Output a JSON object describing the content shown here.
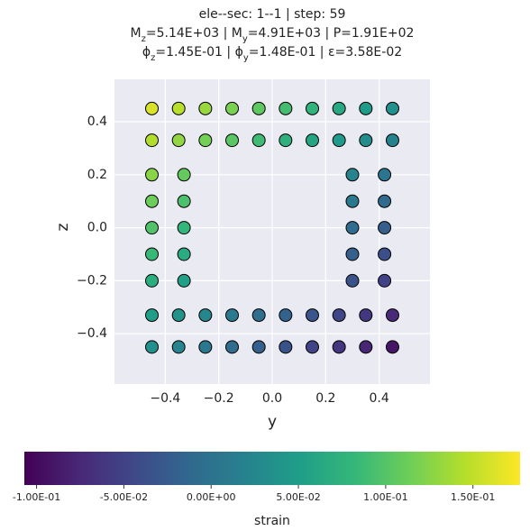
{
  "chart_data": {
    "type": "scatter",
    "title": [
      "ele--sec: 1--1 | step: 59",
      [
        "M",
        "z",
        "=5.14E+03 | M",
        "y",
        "=4.91E+03 | P=1.91E+02"
      ],
      [
        "ϕ",
        "z",
        "=1.45E-01 | ϕ",
        "y",
        "=1.48E-01 | ε=3.58E-02"
      ]
    ],
    "x_label": "y",
    "y_label": "z",
    "grid": true,
    "colormap": "viridis",
    "xlim": [
      -0.59,
      0.59
    ],
    "ylim": [
      -0.59,
      0.56
    ],
    "xticks": [
      {
        "value": -0.4,
        "label": "−0.4"
      },
      {
        "value": -0.2,
        "label": "−0.2"
      },
      {
        "value": 0,
        "label": "0.0"
      },
      {
        "value": 0.2,
        "label": "0.2"
      },
      {
        "value": 0.4,
        "label": "0.4"
      }
    ],
    "yticks": [
      {
        "value": -0.4,
        "label": "−0.4"
      },
      {
        "value": -0.2,
        "label": "−0.2"
      },
      {
        "value": 0,
        "label": "0.0"
      },
      {
        "value": 0.2,
        "label": "0.2"
      },
      {
        "value": 0.4,
        "label": "0.4"
      }
    ],
    "colorbar": {
      "label": "strain",
      "lim": [
        -0.107,
        0.177
      ],
      "ticks": [
        {
          "value": -0.1,
          "label": "-1.00E-01"
        },
        {
          "value": -0.05,
          "label": "-5.00E-02"
        },
        {
          "value": 0,
          "label": "0.00E+00"
        },
        {
          "value": 0.05,
          "label": "5.00E-02"
        },
        {
          "value": 0.1,
          "label": "1.00E-01"
        },
        {
          "value": 0.15,
          "label": "1.50E-01"
        }
      ]
    },
    "x": [
      -0.45,
      -0.35,
      -0.25,
      -0.15,
      -0.05,
      0.05,
      0.15,
      0.25,
      0.35,
      0.45,
      -0.45,
      -0.35,
      -0.25,
      -0.15,
      -0.05,
      0.05,
      0.15,
      0.25,
      0.35,
      0.45,
      -0.45,
      -0.35,
      -0.25,
      -0.15,
      -0.05,
      0.05,
      0.15,
      0.25,
      0.35,
      0.45,
      -0.45,
      -0.35,
      -0.25,
      -0.15,
      -0.05,
      0.05,
      0.15,
      0.25,
      0.35,
      0.45,
      -0.45,
      -0.45,
      -0.45,
      -0.45,
      -0.45,
      -0.33,
      -0.33,
      -0.33,
      -0.33,
      -0.33,
      0.3,
      0.3,
      0.3,
      0.3,
      0.3,
      0.42,
      0.42,
      0.42,
      0.42,
      0.42
    ],
    "y": [
      0.45,
      0.45,
      0.45,
      0.45,
      0.45,
      0.45,
      0.45,
      0.45,
      0.45,
      0.45,
      0.33,
      0.33,
      0.33,
      0.33,
      0.33,
      0.33,
      0.33,
      0.33,
      0.33,
      0.33,
      -0.45,
      -0.45,
      -0.45,
      -0.45,
      -0.45,
      -0.45,
      -0.45,
      -0.45,
      -0.45,
      -0.45,
      -0.33,
      -0.33,
      -0.33,
      -0.33,
      -0.33,
      -0.33,
      -0.33,
      -0.33,
      -0.33,
      -0.33,
      -0.2,
      -0.1,
      0,
      0.1,
      0.2,
      -0.2,
      -0.1,
      0,
      0.1,
      0.2,
      -0.2,
      -0.1,
      0,
      0.1,
      0.2,
      -0.2,
      -0.1,
      0,
      0.1,
      0.2
    ],
    "values": [
      0.161,
      0.147,
      0.133,
      0.119,
      0.105,
      0.091,
      0.077,
      0.063,
      0.049,
      0.035,
      0.144,
      0.13,
      0.116,
      0.102,
      0.088,
      0.074,
      0.06,
      0.046,
      0.032,
      0.018,
      0.035,
      0.021,
      0.007,
      -0.007,
      -0.021,
      -0.035,
      -0.049,
      -0.063,
      -0.077,
      -0.091,
      0.052,
      0.038,
      0.024,
      0.01,
      -0.004,
      -0.018,
      -0.032,
      -0.046,
      -0.06,
      -0.074,
      0.07,
      0.084,
      0.098,
      0.112,
      0.126,
      0.053,
      0.067,
      0.081,
      0.095,
      0.109,
      -0.035,
      -0.021,
      -0.007,
      0.007,
      0.021,
      -0.052,
      -0.038,
      -0.024,
      -0.01,
      0.004
    ]
  }
}
